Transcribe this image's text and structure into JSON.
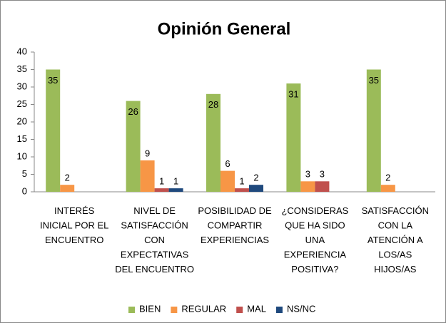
{
  "chart_data": {
    "type": "bar",
    "title": "Opinión General",
    "categories": [
      "INTERÉS INICIAL POR EL ENCUENTRO",
      "NIVEL DE SATISFACCIÓN CON EXPECTATIVAS DEL ENCUENTRO",
      "POSIBILIDAD DE COMPARTIR EXPERIENCIAS",
      "¿CONSIDERAS QUE HA SIDO UNA EXPERIENCIA POSITIVA?",
      "SATISFACCIÓN CON LA ATENCIÓN A LOS/AS HIJOS/AS"
    ],
    "series": [
      {
        "name": "BIEN",
        "color": "#9bbb59",
        "values": [
          35,
          26,
          28,
          31,
          35
        ]
      },
      {
        "name": "REGULAR",
        "color": "#f79646",
        "values": [
          2,
          9,
          6,
          3,
          2
        ]
      },
      {
        "name": "MAL",
        "color": "#c0504d",
        "values": [
          0,
          1,
          1,
          3,
          0
        ]
      },
      {
        "name": "NS/NC",
        "color": "#1f497d",
        "values": [
          0,
          1,
          2,
          0,
          0
        ]
      }
    ],
    "ylim": [
      0,
      40
    ],
    "yticks": [
      0,
      5,
      10,
      15,
      20,
      25,
      30,
      35,
      40
    ],
    "legend": "bottom"
  }
}
